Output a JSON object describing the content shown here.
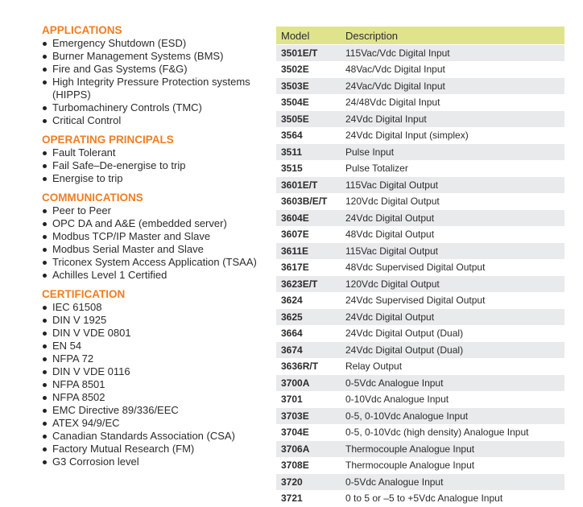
{
  "sections": [
    {
      "title": "APPLICATIONS",
      "items": [
        "Emergency Shutdown (ESD)",
        "Burner Management Systems (BMS)",
        "Fire and Gas Systems (F&G)",
        "High Integrity Pressure Protection systems (HIPPS)",
        "Turbomachinery Controls (TMC)",
        "Critical Control"
      ]
    },
    {
      "title": "OPERATING PRINCIPALS",
      "items": [
        "Fault Tolerant",
        "Fail Safe–De-energise to trip",
        "Energise to trip"
      ]
    },
    {
      "title": "COMMUNICATIONS",
      "items": [
        "Peer to Peer",
        "OPC DA and A&E (embedded server)",
        "Modbus TCP/IP Master and Slave",
        "Modbus Serial Master and Slave",
        "Triconex System Access Application (TSAA)",
        "Achilles Level 1 Certified"
      ]
    },
    {
      "title": "CERTIFICATION",
      "items": [
        "IEC 61508",
        "DIN V 1925",
        "DIN V VDE 0801",
        "EN 54",
        "NFPA 72",
        "DIN V VDE 0116",
        "NFPA 8501",
        "NFPA 8502",
        "EMC Directive 89/336/EEC",
        "ATEX 94/9/EC",
        "Canadian Standards Association (CSA)",
        "Factory Mutual Research (FM)",
        "G3 Corrosion level"
      ]
    }
  ],
  "table": {
    "headers": [
      "Model",
      "Description"
    ],
    "rows": [
      [
        "3501E/T",
        "115Vac/Vdc Digital Input"
      ],
      [
        "3502E",
        "48Vac/Vdc Digital Input"
      ],
      [
        "3503E",
        "24Vac/Vdc Digital Input"
      ],
      [
        "3504E",
        "24/48Vdc Digital Input"
      ],
      [
        "3505E",
        "24Vdc Digital Input"
      ],
      [
        "3564",
        "24Vdc Digital Input (simplex)"
      ],
      [
        "3511",
        "Pulse Input"
      ],
      [
        "3515",
        "Pulse Totalizer"
      ],
      [
        "3601E/T",
        "115Vac Digital Output"
      ],
      [
        "3603B/E/T",
        "120Vdc Digital Output"
      ],
      [
        "3604E",
        "24Vdc Digital Output"
      ],
      [
        "3607E",
        "48Vdc Digital Output"
      ],
      [
        "3611E",
        "115Vac Digital Output"
      ],
      [
        "3617E",
        "48Vdc Supervised Digital Output"
      ],
      [
        "3623E/T",
        "120Vdc Digital Output"
      ],
      [
        "3624",
        "24Vdc Supervised Digital Output"
      ],
      [
        "3625",
        "24Vdc Digital Output"
      ],
      [
        "3664",
        "24Vdc Digital Output (Dual)"
      ],
      [
        "3674",
        "24Vdc Digital Output (Dual)"
      ],
      [
        "3636R/T",
        "Relay Output"
      ],
      [
        "3700A",
        "0-5Vdc Analogue Input"
      ],
      [
        "3701",
        "0-10Vdc Analogue Input"
      ],
      [
        "3703E",
        "0-5, 0-10Vdc Analogue Input"
      ],
      [
        "3704E",
        "0-5, 0-10Vdc (high density) Analogue Input"
      ],
      [
        "3706A",
        "Thermocouple Analogue Input"
      ],
      [
        "3708E",
        "Thermocouple Analogue Input"
      ],
      [
        "3720",
        "0-5Vdc Analogue Input"
      ],
      [
        "3721",
        "0 to 5 or –5 to +5Vdc Analogue Input"
      ]
    ]
  }
}
